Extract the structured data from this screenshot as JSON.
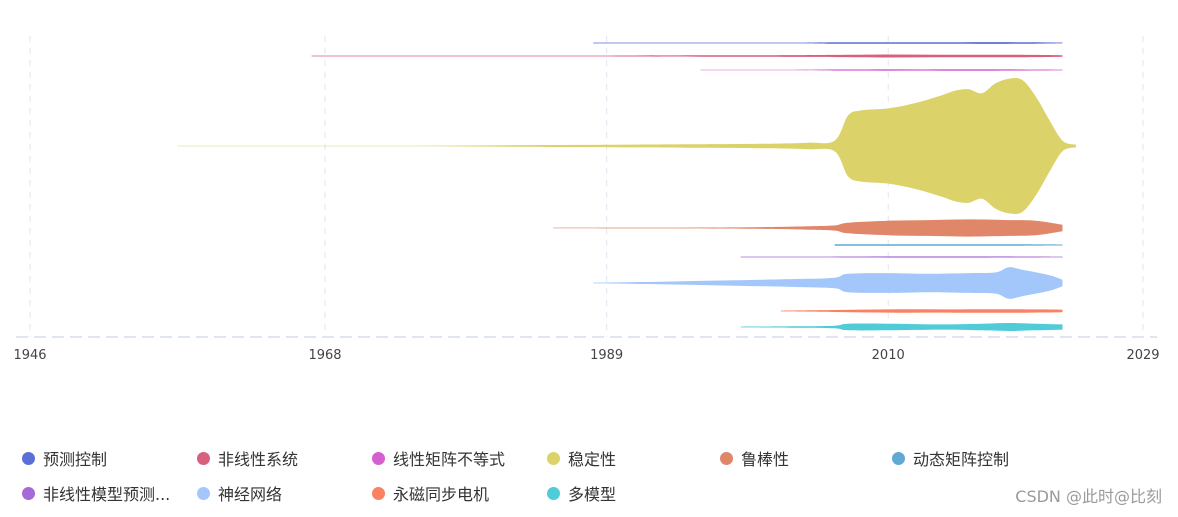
{
  "chart_data": {
    "type": "area",
    "subtype": "themeriver",
    "x_axis": {
      "ticks": [
        1946,
        1968,
        1989,
        2010,
        2029
      ],
      "range": [
        1946,
        2029
      ],
      "grid": true
    },
    "series": [
      {
        "name": "预测控制",
        "color": "#5b6fd6",
        "points": [
          [
            1988,
            0.15
          ],
          [
            1996,
            0.3
          ],
          [
            2003,
            0.6
          ],
          [
            2006,
            1.2
          ],
          [
            2010,
            1.0
          ],
          [
            2014,
            1.2
          ],
          [
            2018,
            1.4
          ],
          [
            2021,
            1.0
          ],
          [
            2023,
            0.6
          ]
        ]
      },
      {
        "name": "非线性系统",
        "color": "#d95f7e",
        "points": [
          [
            1967,
            0.1
          ],
          [
            1976,
            0.25
          ],
          [
            1986,
            0.5
          ],
          [
            1996,
            1.0
          ],
          [
            2003,
            1.3
          ],
          [
            2006,
            1.6
          ],
          [
            2010,
            2.2
          ],
          [
            2014,
            1.8
          ],
          [
            2018,
            2.0
          ],
          [
            2021,
            1.6
          ],
          [
            2023,
            1.1
          ]
        ]
      },
      {
        "name": "线性矩阵不等式",
        "color": "#d45fcf",
        "points": [
          [
            1996,
            0.15
          ],
          [
            2003,
            0.5
          ],
          [
            2006,
            0.9
          ],
          [
            2010,
            1.0
          ],
          [
            2014,
            1.0
          ],
          [
            2018,
            1.1
          ],
          [
            2021,
            0.8
          ],
          [
            2023,
            0.6
          ]
        ]
      },
      {
        "name": "稳定性",
        "color": "#dbd26a",
        "points": [
          [
            1957,
            0.08
          ],
          [
            1968,
            0.15
          ],
          [
            1975,
            0.5
          ],
          [
            1985,
            1.5
          ],
          [
            1995,
            2.5
          ],
          [
            2001,
            3.5
          ],
          [
            2004,
            5
          ],
          [
            2006,
            8
          ],
          [
            2007,
            46
          ],
          [
            2008,
            54
          ],
          [
            2010,
            57
          ],
          [
            2012,
            65
          ],
          [
            2014,
            77
          ],
          [
            2015,
            84
          ],
          [
            2016,
            86
          ],
          [
            2017,
            80
          ],
          [
            2018,
            95
          ],
          [
            2019,
            102
          ],
          [
            2020,
            100
          ],
          [
            2021,
            75
          ],
          [
            2022,
            40
          ],
          [
            2023,
            8
          ],
          [
            2024,
            2
          ]
        ]
      },
      {
        "name": "鲁棒性",
        "color": "#e0876a",
        "points": [
          [
            1985,
            0.1
          ],
          [
            1993,
            0.6
          ],
          [
            2000,
            1.2
          ],
          [
            2004,
            2.5
          ],
          [
            2006,
            4
          ],
          [
            2007,
            8
          ],
          [
            2010,
            11
          ],
          [
            2013,
            12
          ],
          [
            2016,
            13
          ],
          [
            2019,
            12
          ],
          [
            2021,
            11
          ],
          [
            2023,
            5
          ]
        ]
      },
      {
        "name": "动态矩阵控制",
        "color": "#5fa9d3",
        "points": [
          [
            2006,
            1.0
          ],
          [
            2010,
            1.0
          ],
          [
            2016,
            1.0
          ],
          [
            2020,
            1.0
          ],
          [
            2023,
            0.8
          ]
        ]
      },
      {
        "name": "非线性模型预测控制",
        "color": "#a56ad6",
        "points": [
          [
            1999,
            0.15
          ],
          [
            2004,
            0.5
          ],
          [
            2008,
            0.8
          ],
          [
            2012,
            0.9
          ],
          [
            2016,
            0.9
          ],
          [
            2020,
            0.8
          ],
          [
            2023,
            0.6
          ]
        ]
      },
      {
        "name": "神经网络",
        "color": "#a4c7fb",
        "points": [
          [
            1988,
            0.2
          ],
          [
            1993,
            2
          ],
          [
            1998,
            4
          ],
          [
            2003,
            6
          ],
          [
            2006,
            8
          ],
          [
            2007,
            14
          ],
          [
            2010,
            15
          ],
          [
            2013,
            14
          ],
          [
            2016,
            15
          ],
          [
            2018,
            16
          ],
          [
            2019,
            24
          ],
          [
            2020,
            20
          ],
          [
            2022,
            12
          ],
          [
            2023,
            5
          ]
        ]
      },
      {
        "name": "永磁同步电机",
        "color": "#fa8262",
        "points": [
          [
            2002,
            0.4
          ],
          [
            2006,
            1.5
          ],
          [
            2010,
            2.5
          ],
          [
            2014,
            2.5
          ],
          [
            2018,
            2.8
          ],
          [
            2021,
            2.5
          ],
          [
            2023,
            2
          ]
        ]
      },
      {
        "name": "多模型",
        "color": "#4fccd8",
        "points": [
          [
            1999,
            0.3
          ],
          [
            2003,
            1
          ],
          [
            2006,
            2
          ],
          [
            2007,
            5
          ],
          [
            2010,
            5
          ],
          [
            2014,
            4
          ],
          [
            2017,
            5
          ],
          [
            2019,
            6
          ],
          [
            2021,
            5
          ],
          [
            2023,
            4
          ]
        ]
      }
    ],
    "legend": {
      "position": "bottom"
    }
  },
  "legend_overflow_label": "非线性模型预测...",
  "watermark": "CSDN @此时@比刻"
}
